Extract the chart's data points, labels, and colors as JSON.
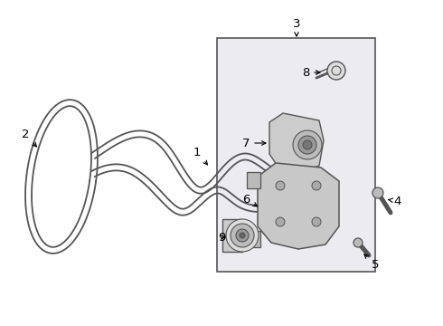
{
  "bg_color": "#ffffff",
  "fig_width": 4.9,
  "fig_height": 3.6,
  "dpi": 100,
  "line_color": "#555555",
  "light_gray": "#cccccc",
  "mid_gray": "#999999",
  "box_bg": "#ebebf0",
  "box_edge": "#555555"
}
